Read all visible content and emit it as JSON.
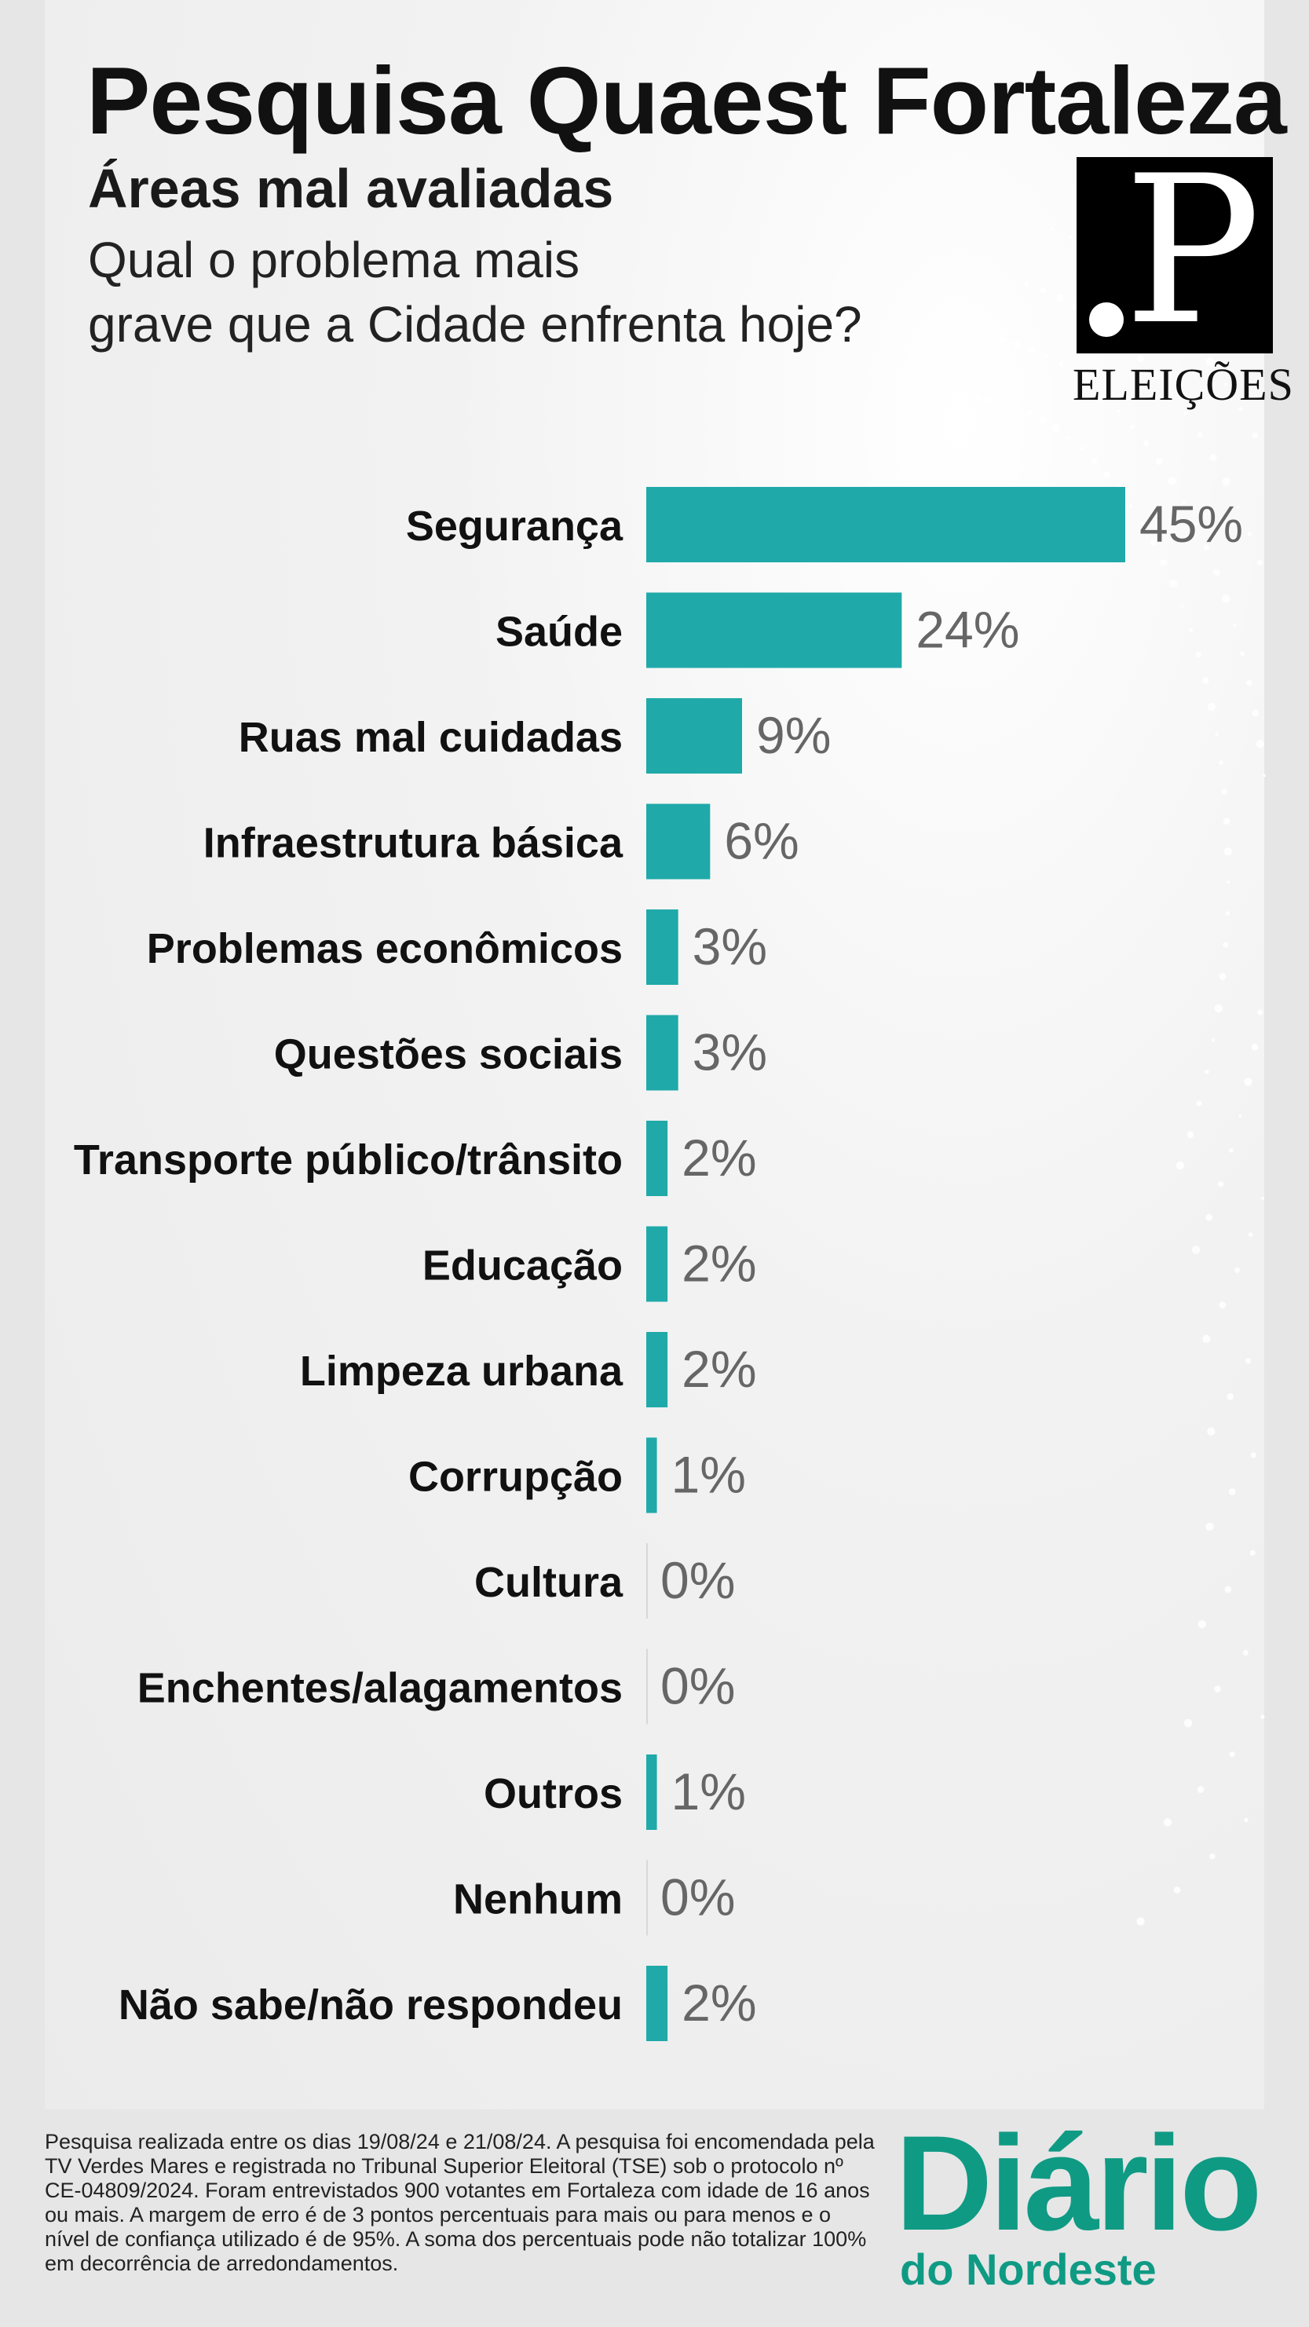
{
  "header": {
    "title": "Pesquisa Quaest Fortaleza",
    "subtitle": "Áreas mal avaliadas",
    "question_line1": "Qual o problema mais",
    "question_line2": "grave que a Cidade enfrenta hoje?"
  },
  "logo": {
    "letter": ".P",
    "caption": "ELEIÇÕES"
  },
  "chart_data": {
    "type": "bar",
    "orientation": "horizontal",
    "categories": [
      "Segurança",
      "Saúde",
      "Ruas mal cuidadas",
      "Infraestrutura básica",
      "Problemas econômicos",
      "Questões sociais",
      "Transporte público/trânsito",
      "Educação",
      "Limpeza urbana",
      "Corrupção",
      "Cultura",
      "Enchentes/alagamentos",
      "Outros",
      "Nenhum",
      "Não sabe/não respondeu"
    ],
    "values": [
      45,
      24,
      9,
      6,
      3,
      3,
      2,
      2,
      2,
      1,
      0,
      0,
      1,
      0,
      2
    ],
    "value_labels": [
      "45%",
      "24%",
      "9%",
      "6%",
      "3%",
      "3%",
      "2%",
      "2%",
      "2%",
      "1%",
      "0%",
      "0%",
      "1%",
      "0%",
      "2%"
    ],
    "unit": "%",
    "bar_color": "#20a9a9",
    "label_color": "#111111",
    "value_color": "#666666"
  },
  "footer": {
    "note": "Pesquisa realizada entre os dias 19/08/24 e  21/08/24. A pesquisa foi encomendada pela TV Verdes Mares e registrada no Tribunal Superior Eleitoral (TSE) sob o protocolo nº CE-04809/2024. Foram entrevistados 900 votantes em Fortaleza com idade de 16 anos ou mais. A margem de erro é de 3 pontos percentuais para mais ou para menos e o nível de confiança utilizado é de 95%. A soma dos percentuais pode não totalizar 100% em decorrência de arredondamentos.",
    "brand_main": "Diário",
    "brand_sub": "do Nordeste",
    "brand_color": "#0f9a84"
  }
}
